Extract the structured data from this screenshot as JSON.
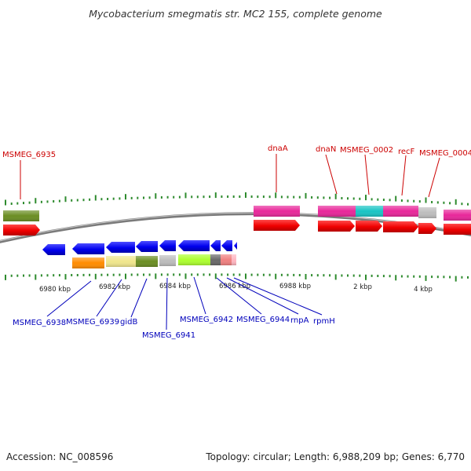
{
  "title": "Mycobacterium smegmatis str. MC2 155, complete genome",
  "footer": {
    "accession": "Accession: NC_008596",
    "topology": "Topology: circular; Length: 6,988,209 bp; Genes: 6,770"
  },
  "colors": {
    "backbone": "#888888",
    "tick": "#2e8b2e",
    "forward_label": "#cc0000",
    "reverse_label": "#0000bb"
  },
  "axis_labels": [
    "6980 kbp",
    "6982 kbp",
    "6984 kbp",
    "6986 kbp",
    "6988 kbp",
    "2 kbp",
    "4 kbp"
  ],
  "forward_genes": [
    {
      "label": "MSMEG_6935",
      "color": "#cc0000"
    },
    {
      "label": "dnaA",
      "color": "#cc0000"
    },
    {
      "label": "dnaN",
      "color": "#cc0000"
    },
    {
      "label": "MSMEG_0002",
      "color": "#cc0000"
    },
    {
      "label": "recF",
      "color": "#cc0000"
    },
    {
      "label": "MSMEG_0004",
      "color": "#cc0000"
    }
  ],
  "reverse_genes": [
    {
      "label": "MSMEG_6938",
      "color": "#0000bb"
    },
    {
      "label": "MSMEG_6939",
      "color": "#0000bb"
    },
    {
      "label": "gidB",
      "color": "#0000bb"
    },
    {
      "label": "MSMEG_6941",
      "color": "#0000bb"
    },
    {
      "label": "MSMEG_6942",
      "color": "#0000bb"
    },
    {
      "label": "MSMEG_6944",
      "color": "#0000bb"
    },
    {
      "label": "rnpA",
      "color": "#0000bb"
    },
    {
      "label": "rpmH",
      "color": "#0000bb"
    }
  ]
}
